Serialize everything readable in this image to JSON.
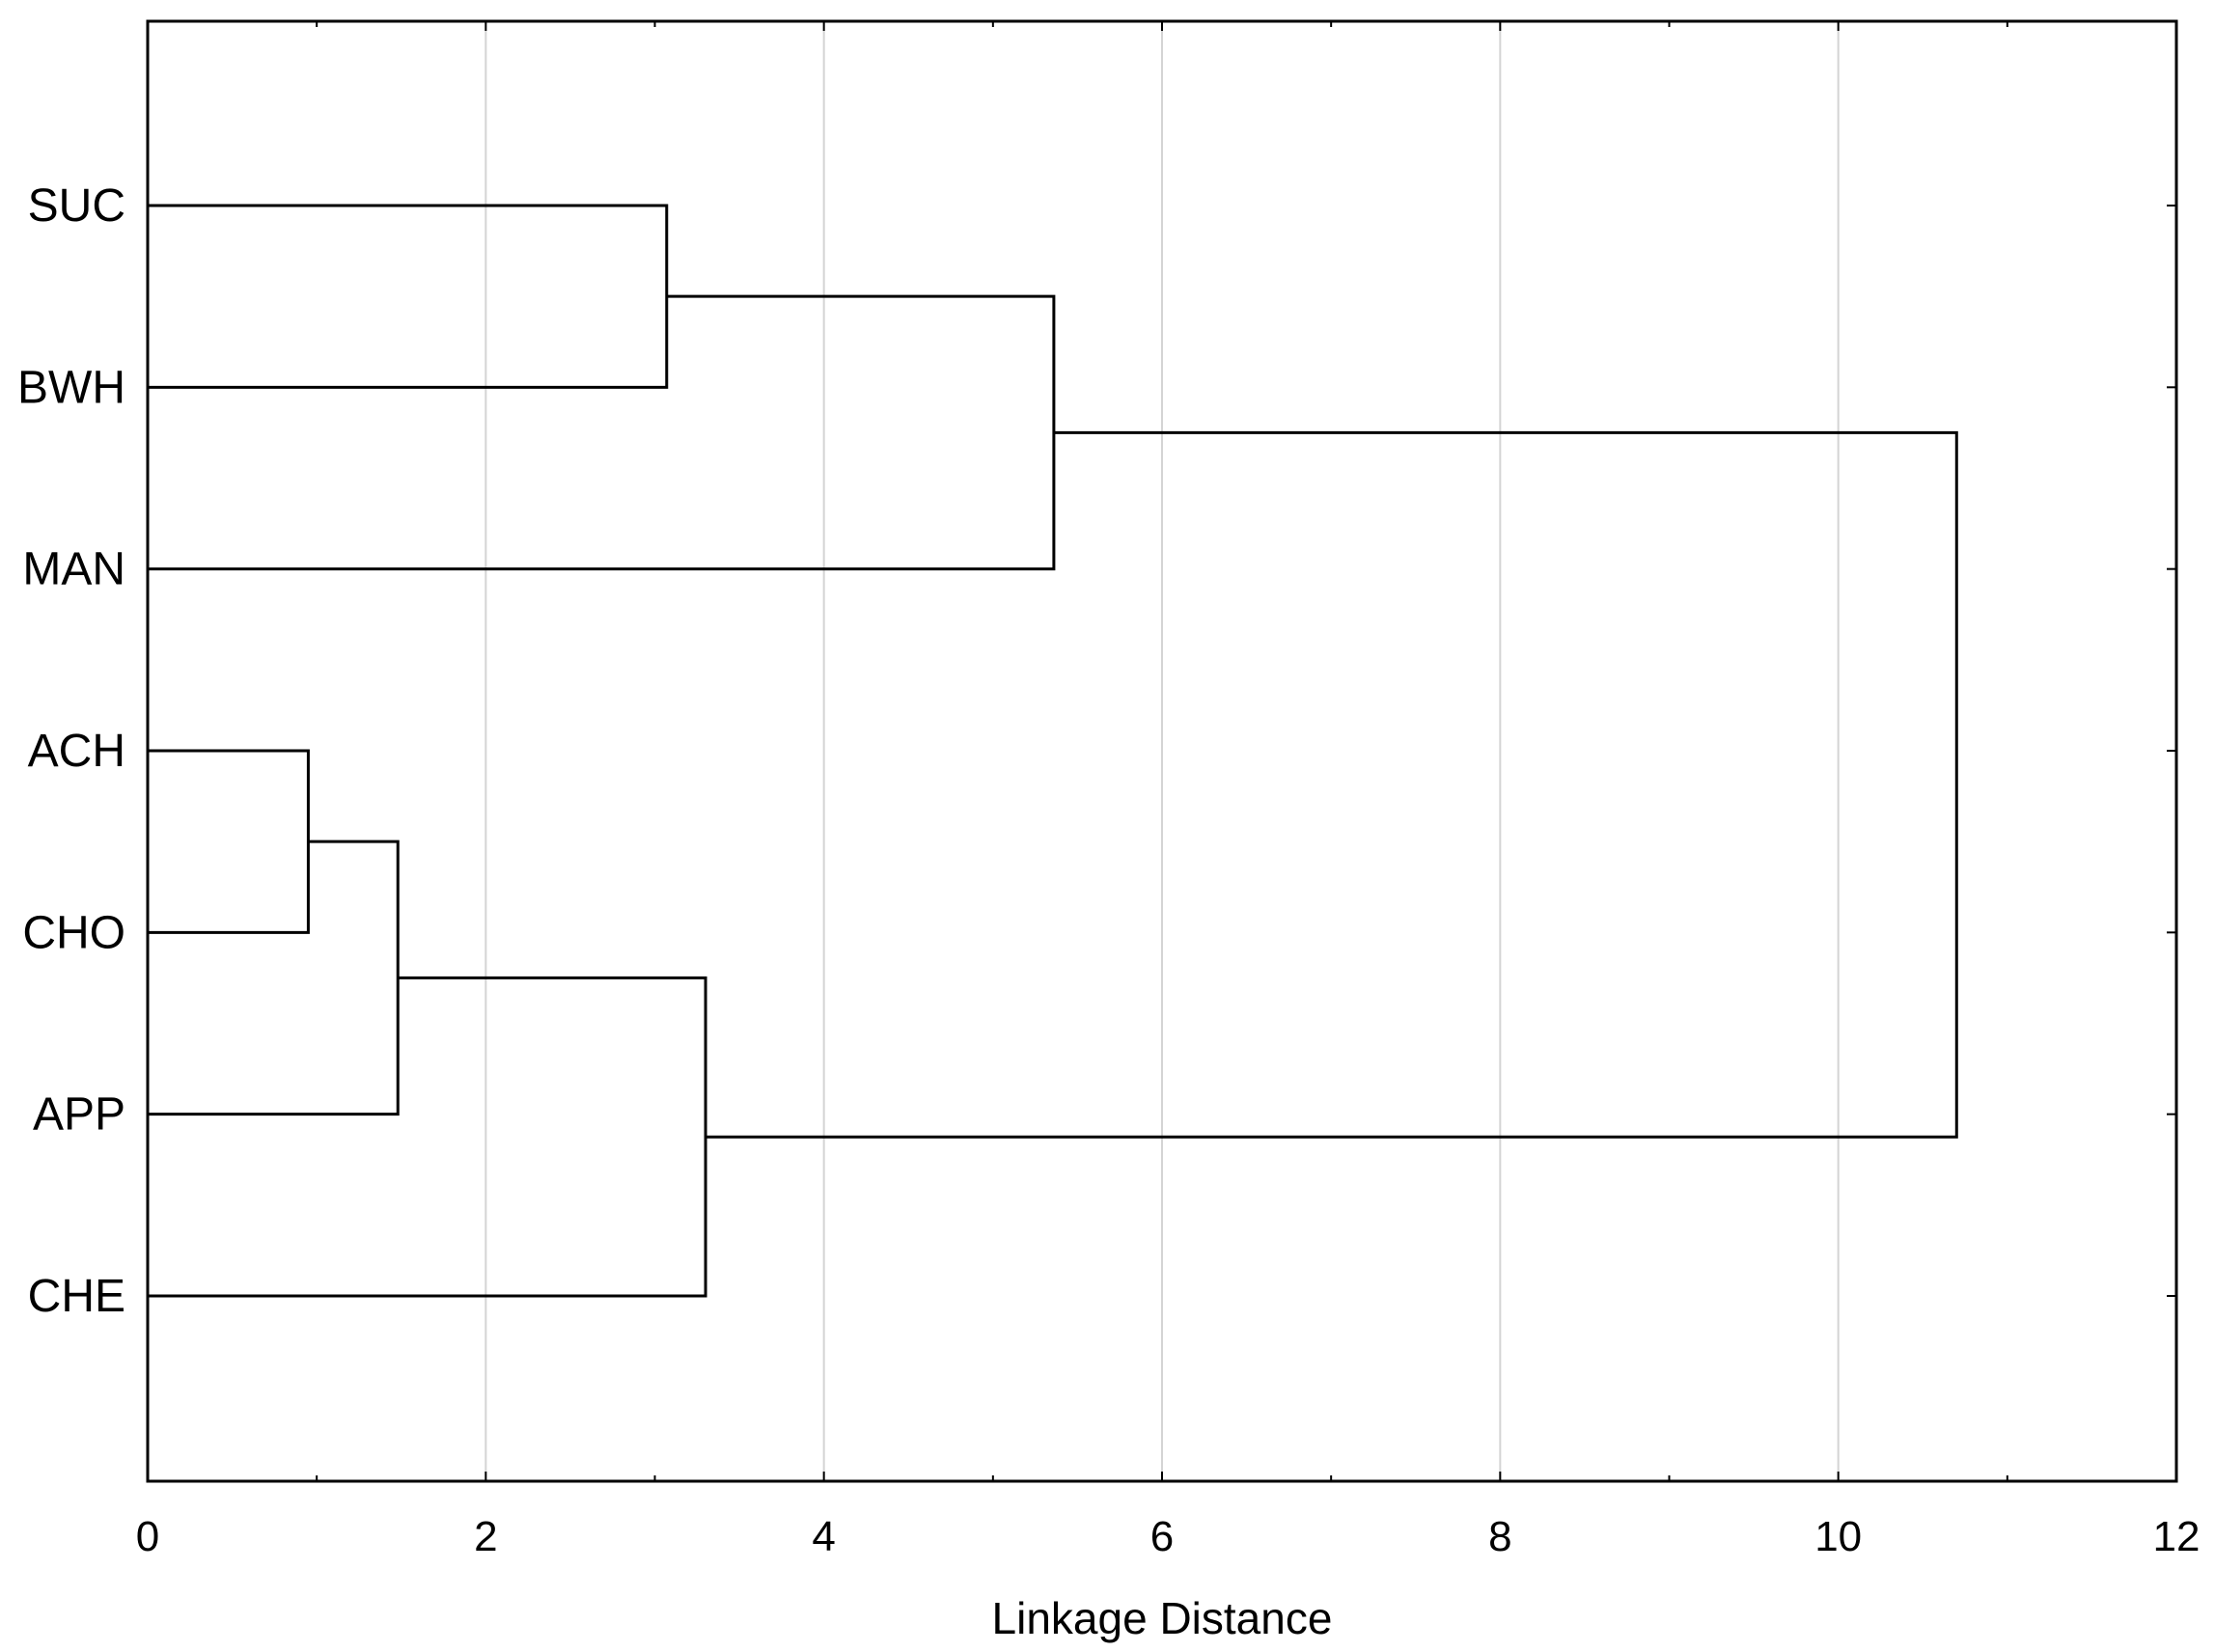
{
  "chart_data": {
    "type": "dendrogram",
    "orientation": "horizontal",
    "title": "",
    "xlabel": "Linkage Distance",
    "ylabel": "",
    "xlim": [
      0,
      12
    ],
    "xticks": [
      0,
      2,
      4,
      6,
      8,
      10,
      12
    ],
    "xtick_labels": [
      "0",
      "2",
      "4",
      "6",
      "8",
      "10",
      "12"
    ],
    "grid": "vertical",
    "leaves": [
      "SUC",
      "BWH",
      "MAN",
      "ACH",
      "CHO",
      "APP",
      "CHE"
    ],
    "merges": [
      {
        "children": [
          "ACH",
          "CHO"
        ],
        "distance": 0.95
      },
      {
        "children": [
          "ACH+CHO",
          "APP"
        ],
        "distance": 1.48
      },
      {
        "children": [
          "SUC",
          "BWH"
        ],
        "distance": 3.07
      },
      {
        "children": [
          "ACH+CHO+APP",
          "CHE"
        ],
        "distance": 3.3
      },
      {
        "children": [
          "SUC+BWH",
          "MAN"
        ],
        "distance": 5.36
      },
      {
        "children": [
          "SUC+BWH+MAN",
          "ACH+CHO+APP+CHE"
        ],
        "distance": 10.7
      }
    ],
    "colors": {
      "line": "#000000",
      "grid": "#d4d4d4",
      "background": "#ffffff"
    }
  }
}
